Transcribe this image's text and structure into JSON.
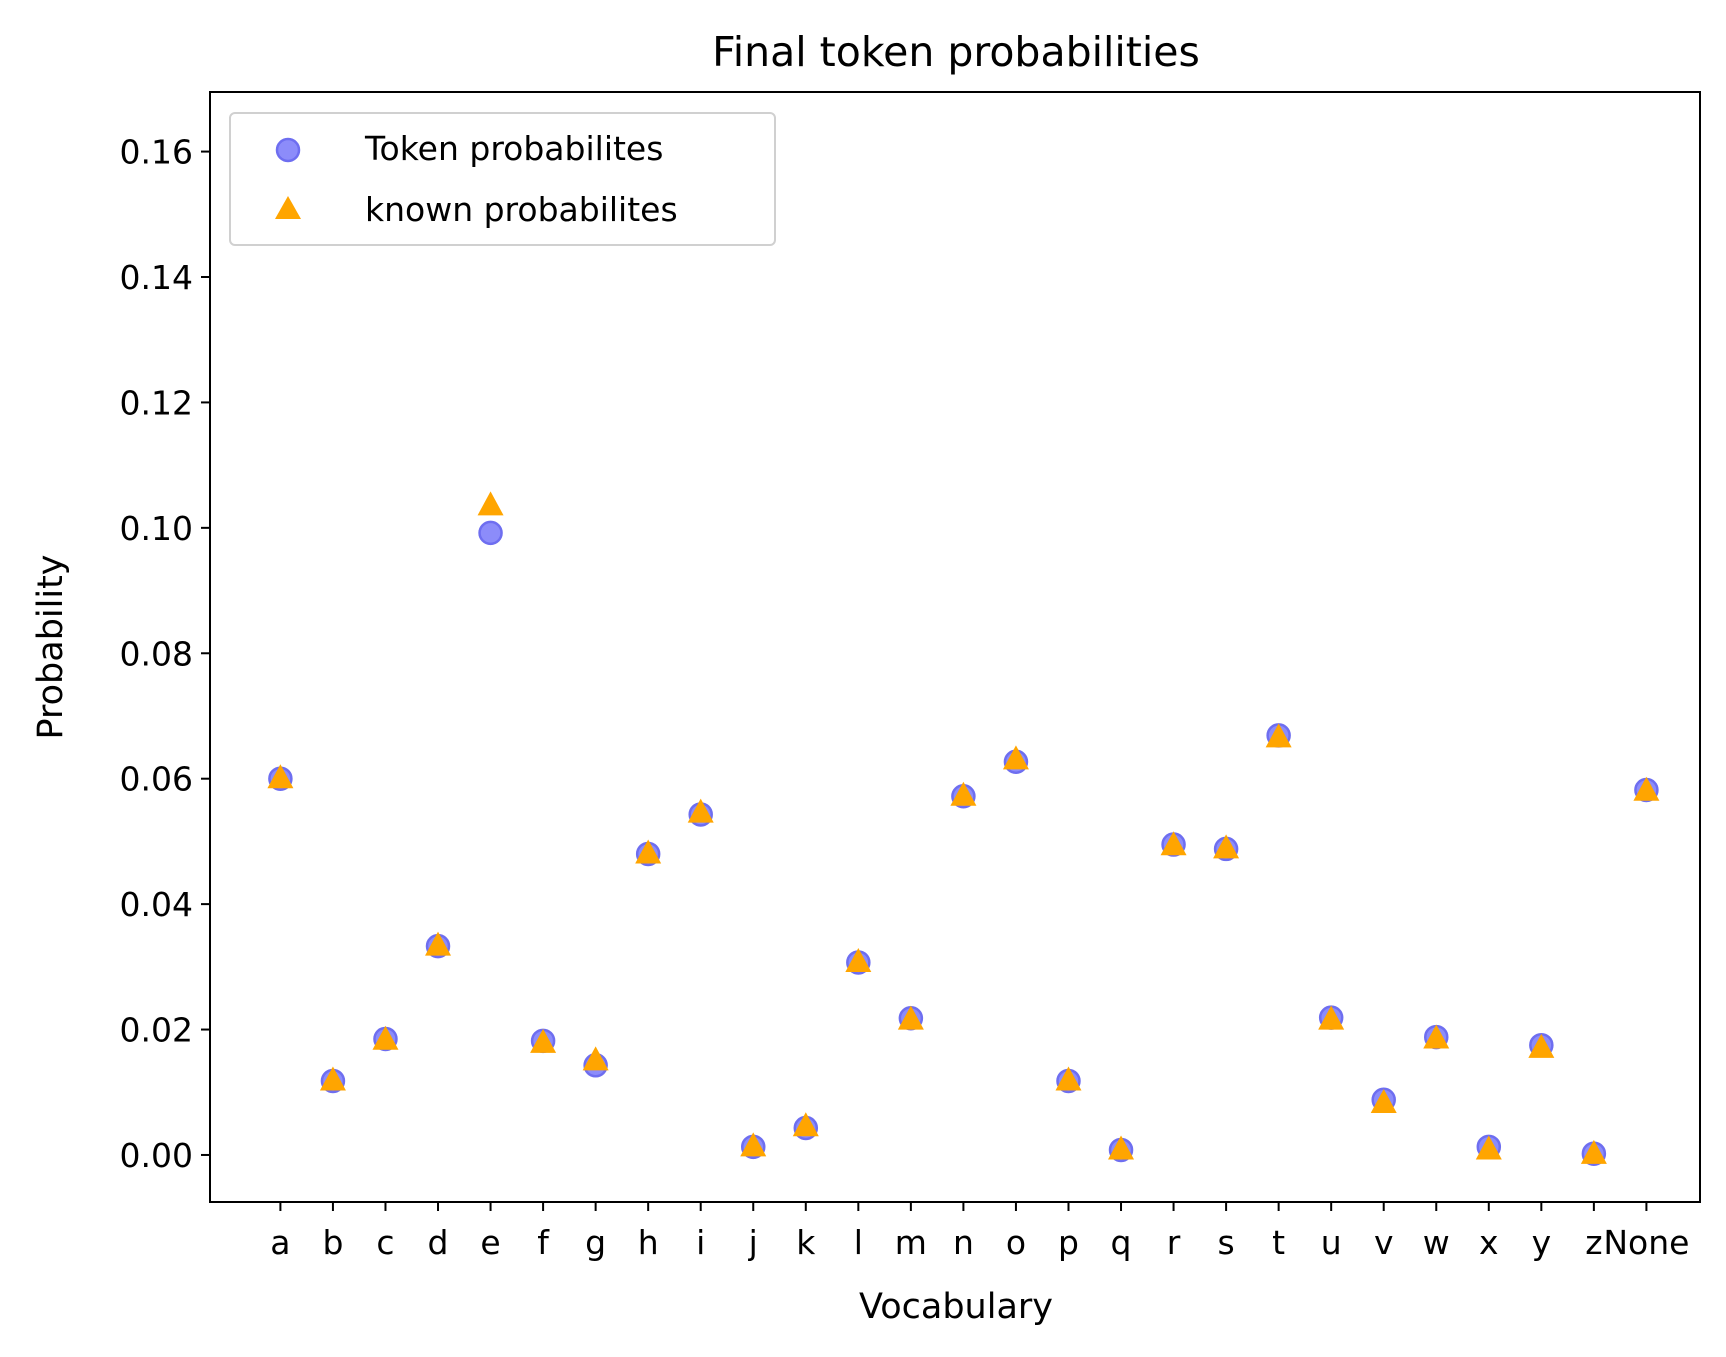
{
  "chart_data": {
    "type": "scatter",
    "title": "Final token probabilities",
    "xlabel": "Vocabulary",
    "ylabel": "Probability",
    "categories": [
      "a",
      "b",
      "c",
      "d",
      "e",
      "f",
      "g",
      "h",
      "i",
      "j",
      "k",
      "l",
      "m",
      "n",
      "o",
      "p",
      "q",
      "r",
      "s",
      "t",
      "u",
      "v",
      "w",
      "x",
      "y",
      "z",
      "None"
    ],
    "ylim": [
      -0.0075,
      0.1695
    ],
    "yticks": [
      0.0,
      0.02,
      0.04,
      0.06,
      0.08,
      0.1,
      0.12,
      0.14,
      0.16
    ],
    "ytick_labels": [
      "0.00",
      "0.02",
      "0.04",
      "0.06",
      "0.08",
      "0.10",
      "0.12",
      "0.14",
      "0.16"
    ],
    "grid": false,
    "legend_position": "upper-left",
    "series": [
      {
        "name": "Token probabilites",
        "marker": "circle",
        "color": "#8c8cfa",
        "edge_color": "#6e6ef0",
        "values": [
          0.06,
          0.0118,
          0.0185,
          0.0333,
          0.0992,
          0.0182,
          0.0143,
          0.048,
          0.0543,
          0.0013,
          0.0043,
          0.0307,
          0.0218,
          0.0572,
          0.0627,
          0.0118,
          0.0008,
          0.0495,
          0.0488,
          0.0669,
          0.0219,
          0.0088,
          0.0188,
          0.0013,
          0.0175,
          0.0002,
          0.0582
        ]
      },
      {
        "name": "known probabilites",
        "marker": "triangle",
        "color": "#ffa500",
        "values": [
          0.06,
          0.0118,
          0.0183,
          0.0333,
          0.1035,
          0.0178,
          0.015,
          0.048,
          0.0545,
          0.0013,
          0.0045,
          0.0307,
          0.0215,
          0.0572,
          0.063,
          0.0118,
          0.0008,
          0.0493,
          0.0488,
          0.0665,
          0.0215,
          0.0082,
          0.0185,
          0.0008,
          0.017,
          0.0001,
          0.058
        ]
      }
    ]
  }
}
